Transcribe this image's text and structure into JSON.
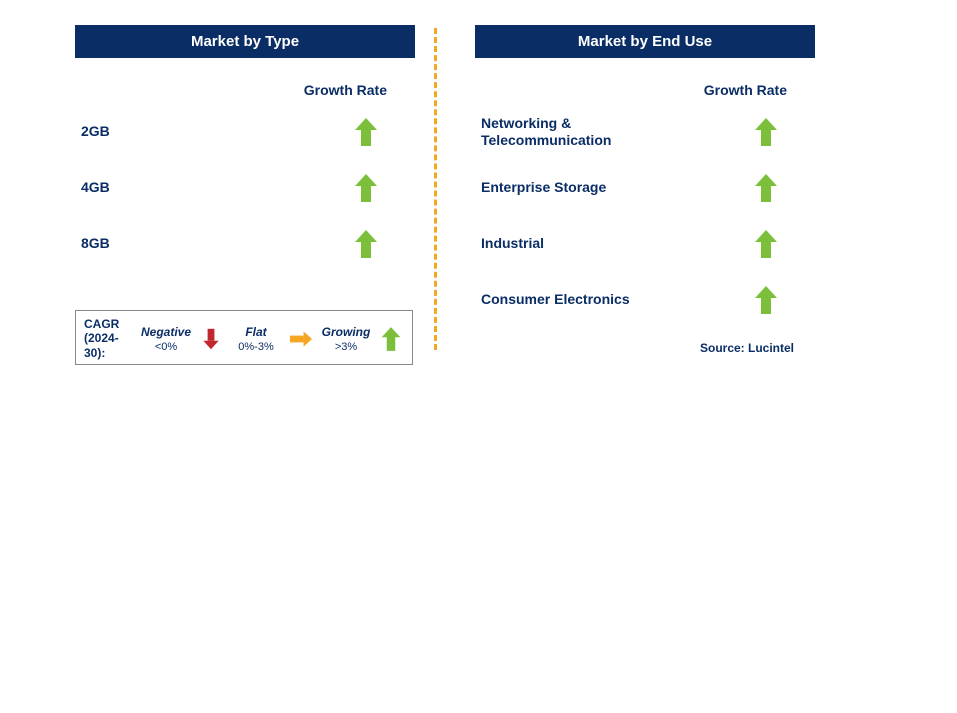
{
  "colors": {
    "header_bg": "#0a2d66",
    "text": "#0a2d66",
    "divider": "#f5a623",
    "arrow_growing": "#7bbf3a",
    "arrow_flat": "#f5a623",
    "arrow_negative": "#c1272d"
  },
  "left_panel": {
    "title": "Market by Type",
    "growth_label": "Growth Rate",
    "rows": [
      {
        "label": "2GB",
        "arrow": "up-growing"
      },
      {
        "label": "4GB",
        "arrow": "up-growing"
      },
      {
        "label": "8GB",
        "arrow": "up-growing"
      }
    ]
  },
  "right_panel": {
    "title": "Market by End Use",
    "growth_label": "Growth Rate",
    "rows": [
      {
        "label": "Networking & Telecommunication",
        "arrow": "up-growing"
      },
      {
        "label": "Enterprise Storage",
        "arrow": "up-growing"
      },
      {
        "label": "Industrial",
        "arrow": "up-growing"
      },
      {
        "label": "Consumer Electronics",
        "arrow": "up-growing"
      }
    ]
  },
  "legend": {
    "cagr_line1": "CAGR",
    "cagr_line2": "(2024-30):",
    "items": [
      {
        "name": "Negative",
        "value": "<0%",
        "icon": "down-negative"
      },
      {
        "name": "Flat",
        "value": "0%-3%",
        "icon": "right-flat"
      },
      {
        "name": "Growing",
        "value": ">3%",
        "icon": "up-growing"
      }
    ]
  },
  "source": "Source: Lucintel"
}
